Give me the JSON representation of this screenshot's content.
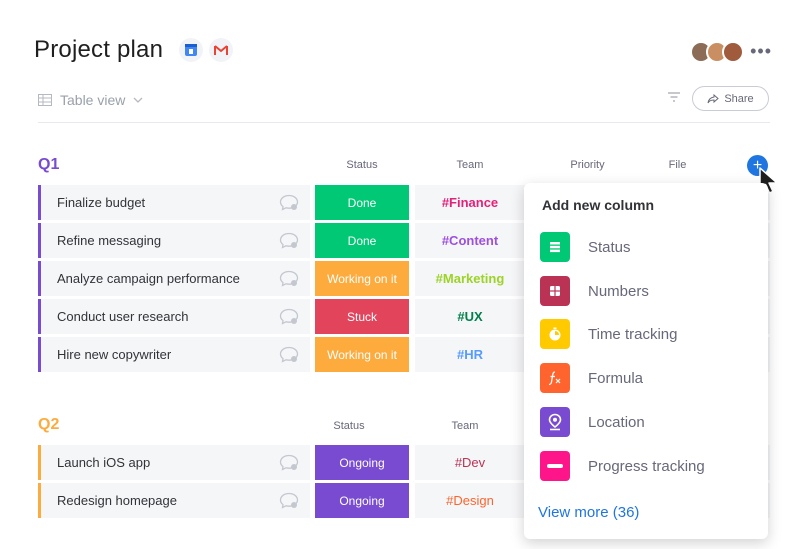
{
  "board": {
    "title": "Project plan",
    "view_label": "Table view",
    "share_label": "Share"
  },
  "columns": {
    "status": "Status",
    "team": "Team",
    "priority": "Priority",
    "file": "File"
  },
  "groups": [
    {
      "name": "Q1",
      "color": "#784bd1",
      "rows": [
        {
          "task": "Finalize budget",
          "status": "Done",
          "status_color": "#00c875",
          "team": "#Finance",
          "team_color": "#e2227a"
        },
        {
          "task": "Refine messaging",
          "status": "Done",
          "status_color": "#00c875",
          "team": "#Content",
          "team_color": "#9d50dd"
        },
        {
          "task": "Analyze campaign performance",
          "status": "Working on it",
          "status_color": "#fdab3d",
          "team": "#Marketing",
          "team_color": "#9cd326"
        },
        {
          "task": "Conduct user research",
          "status": "Stuck",
          "status_color": "#e2445c",
          "team": "#UX",
          "team_color": "#037f4c"
        },
        {
          "task": "Hire new copywriter",
          "status": "Working on it",
          "status_color": "#fdab3d",
          "team": "#HR",
          "team_color": "#579bfc"
        }
      ]
    },
    {
      "name": "Q2",
      "color": "#fdab3d",
      "rows": [
        {
          "task": "Launch iOS app",
          "status": "Ongoing",
          "status_color": "#784bd1",
          "team": "#Dev",
          "team_color": "#bb3354"
        },
        {
          "task": "Redesign homepage",
          "status": "Ongoing",
          "status_color": "#784bd1",
          "team": "#Design",
          "team_color": "#ff642e"
        }
      ]
    }
  ],
  "add_column_menu": {
    "title": "Add new column",
    "items": [
      {
        "label": "Status",
        "icon": "status-icon",
        "color": "#00c875"
      },
      {
        "label": "Numbers",
        "icon": "numbers-icon",
        "color": "#bb3354"
      },
      {
        "label": "Time tracking",
        "icon": "stopwatch-icon",
        "color": "#ffcb00"
      },
      {
        "label": "Formula",
        "icon": "formula-icon",
        "color": "#ff642e"
      },
      {
        "label": "Location",
        "icon": "location-pin-icon",
        "color": "#784bd1"
      },
      {
        "label": "Progress tracking",
        "icon": "progress-icon",
        "color": "#ff158a"
      }
    ],
    "view_more": "View more (36)"
  },
  "accent_color": "#1f76e0"
}
